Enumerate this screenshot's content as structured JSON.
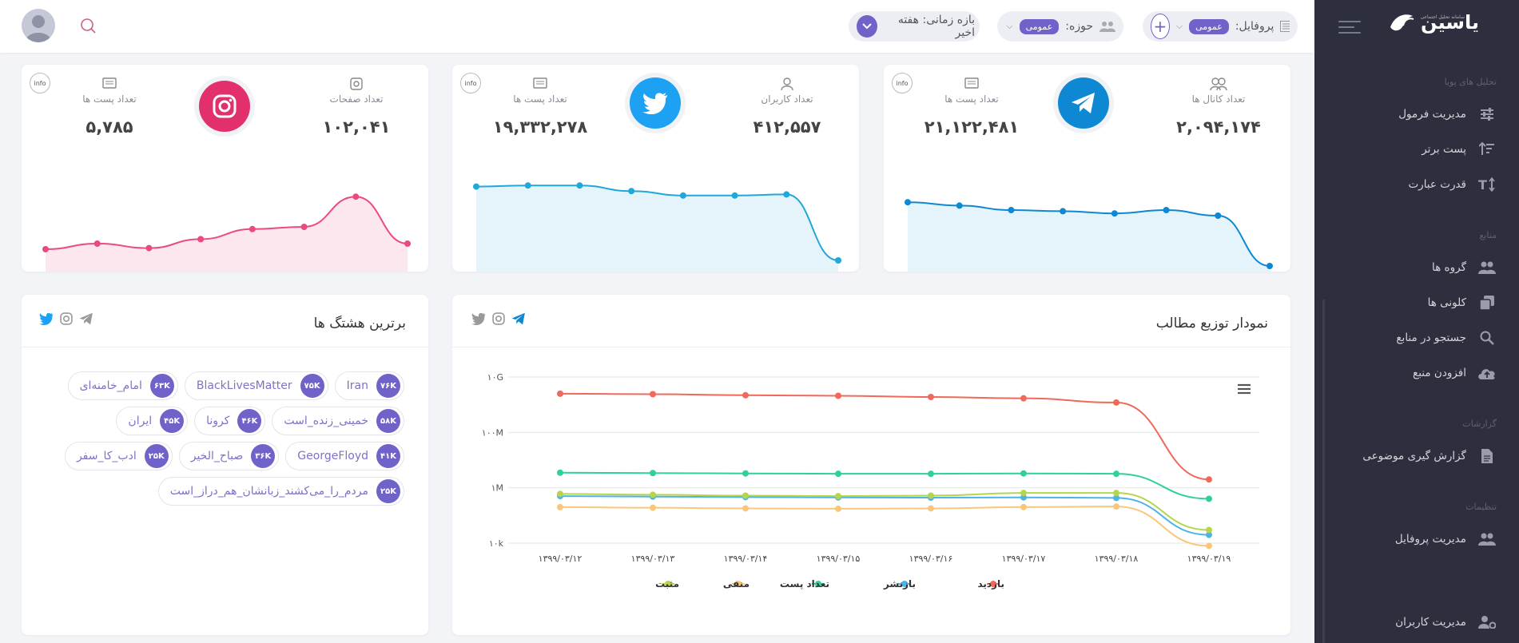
{
  "colors": {
    "accent": "#6f63c9",
    "telegram": "#0e88d3",
    "twitter": "#1da1f2",
    "instagram": "#e1306c"
  },
  "sidebar": {
    "logo_text": "یاسین",
    "logo_sub": "سامانه تحلیل اجتماعی",
    "sections": [
      "تحلیل های پویا",
      "منابع",
      "گزارشات",
      "تنظیمات"
    ],
    "items": [
      {
        "label": "مدیریت فرمول",
        "icon": "sliders-icon"
      },
      {
        "label": "پست برتر",
        "icon": "sort-icon"
      },
      {
        "label": "قدرت عبارت",
        "icon": "text-height-icon"
      },
      {
        "label": "گروه ها",
        "icon": "users-icon"
      },
      {
        "label": "کلونی ها",
        "icon": "copy-icon"
      },
      {
        "label": "جستجو در منابع",
        "icon": "search-icon"
      },
      {
        "label": "افزودن منبع",
        "icon": "cloud-upload-icon"
      },
      {
        "label": "گزارش گیری موضوعی",
        "icon": "file-icon"
      },
      {
        "label": "مدیریت پروفایل",
        "icon": "users-icon"
      },
      {
        "label": "مدیریت کاربران",
        "icon": "user-cog-icon"
      }
    ]
  },
  "topbar": {
    "profile_label": "پروفایل:",
    "profile_value": "عمومی",
    "domain_label": "حوزه:",
    "domain_value": "عمومی",
    "time_label": "بازه زمانی: هفته اخیر"
  },
  "stats": {
    "telegram": {
      "label1": "تعداد کانال ها",
      "value1": "۲,۰۹۴,۱۷۴",
      "label2": "تعداد پست ها",
      "value2": "۲۱,۱۲۲,۴۸۱",
      "info": "info",
      "spark": [
        0.62,
        0.59,
        0.55,
        0.54,
        0.52,
        0.55,
        0.5,
        0.05
      ]
    },
    "twitter": {
      "label1": "تعداد کاربران",
      "value1": "۴۱۲,۵۵۷",
      "label2": "تعداد پست ها",
      "value2": "۱۹,۳۳۲,۲۷۸",
      "info": "info",
      "spark": [
        0.76,
        0.77,
        0.77,
        0.72,
        0.68,
        0.68,
        0.69,
        0.1
      ]
    },
    "instagram": {
      "label1": "تعداد صفحات",
      "value1": "۱۰۲,۰۴۱",
      "label2": "تعداد پست ها",
      "value2": "۵,۷۸۵",
      "info": "info",
      "spark": [
        0.2,
        0.25,
        0.21,
        0.29,
        0.38,
        0.4,
        0.67,
        0.25
      ]
    }
  },
  "hashtags": {
    "title": "برترین هشتگ ها",
    "tags": [
      {
        "text": "Iran",
        "count": "۷۶K"
      },
      {
        "text": "BlackLivesMatter",
        "count": "۷۵K"
      },
      {
        "text": "امام_خامنه‌ای",
        "count": "۶۳K"
      },
      {
        "text": "خمینی_زنده_است",
        "count": "۵۸K"
      },
      {
        "text": "کرونا",
        "count": "۴۶K"
      },
      {
        "text": "ایران",
        "count": "۴۵K"
      },
      {
        "text": "GeorgeFloyd",
        "count": "۴۱K"
      },
      {
        "text": "صباح_الخیر",
        "count": "۳۶K"
      },
      {
        "text": "ادب_کا_سفر",
        "count": "۲۵K"
      },
      {
        "text": "مردم_را_می‌کشند_زبانشان_هم_دراز_است",
        "count": "۲۵K"
      }
    ]
  },
  "distribution": {
    "title": "نمودار توزیع مطالب",
    "chart_data": {
      "type": "line",
      "y_scale": "log",
      "yticks": [
        "۱۰k",
        "۱M",
        "۱۰۰M",
        "۱۰G"
      ],
      "ylim": [
        10000,
        10000000000
      ],
      "x": [
        "۱۳۹۹/۰۳/۱۲",
        "۱۳۹۹/۰۳/۱۳",
        "۱۳۹۹/۰۳/۱۴",
        "۱۳۹۹/۰۳/۱۵",
        "۱۳۹۹/۰۳/۱۶",
        "۱۳۹۹/۰۳/۱۷",
        "۱۳۹۹/۰۳/۱۸",
        "۱۳۹۹/۰۳/۱۹"
      ],
      "series": [
        {
          "name": "بازدید",
          "color": "#f0695a",
          "values": [
            2500000000,
            2400000000,
            2200000000,
            2100000000,
            1900000000,
            1700000000,
            1200000000,
            2000000
          ]
        },
        {
          "name": "بازنشر",
          "color": "#4fb3e8",
          "values": [
            500000,
            480000,
            460000,
            450000,
            440000,
            450000,
            430000,
            20000
          ]
        },
        {
          "name": "تعداد پست",
          "color": "#2fd19a",
          "values": [
            3500000,
            3400000,
            3300000,
            3200000,
            3200000,
            3300000,
            3200000,
            400000
          ]
        },
        {
          "name": "منفی",
          "color": "#f8c77c",
          "values": [
            200000,
            190000,
            180000,
            175000,
            180000,
            200000,
            210000,
            8000
          ]
        },
        {
          "name": "مثبت",
          "color": "#b7d54c",
          "values": [
            600000,
            560000,
            520000,
            500000,
            520000,
            650000,
            650000,
            30000
          ]
        }
      ]
    }
  }
}
